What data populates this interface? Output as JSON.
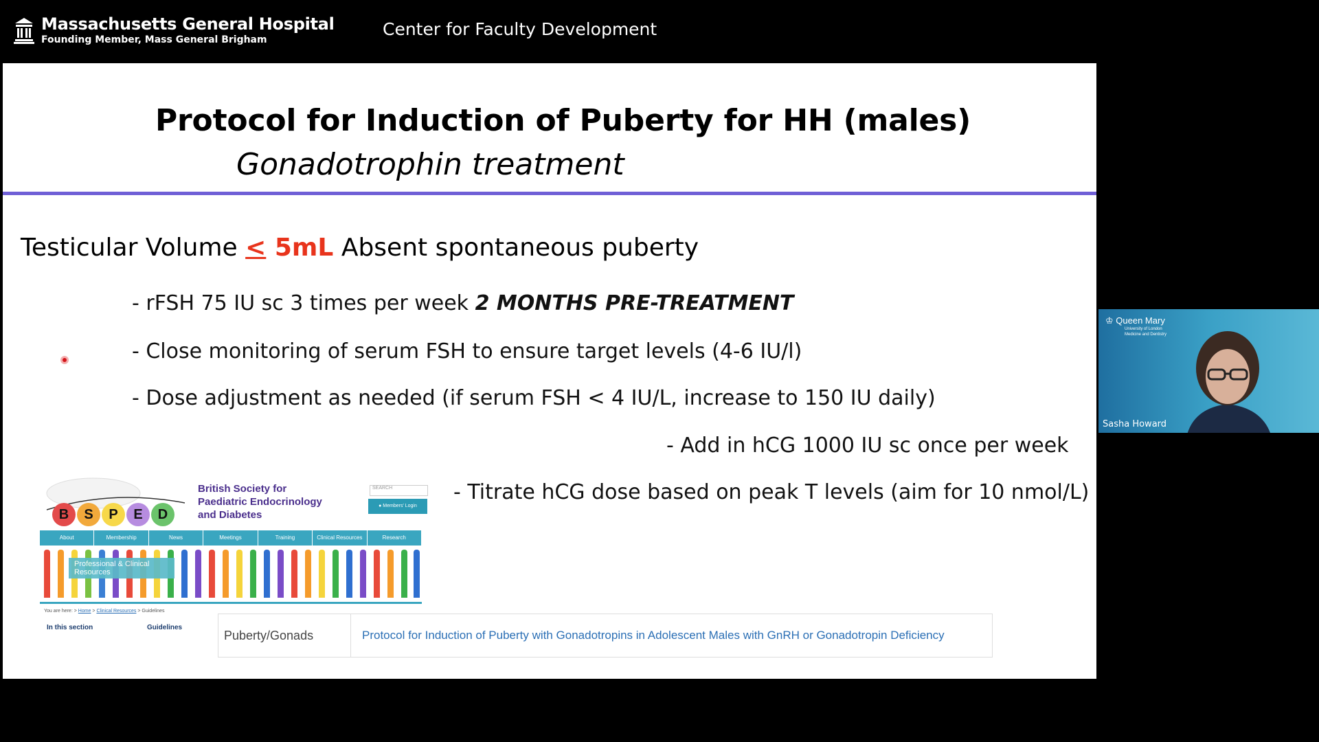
{
  "header": {
    "hospital_name": "Massachusetts General Hospital",
    "hospital_sub": "Founding Member, Mass General Brigham",
    "center_title": "Center for Faculty Development"
  },
  "slide": {
    "title": "Protocol for Induction of Puberty for HH (males)",
    "subtitle": "Gonadotrophin  treatment",
    "lead_prefix": "Testicular Volume ",
    "lead_le": "<",
    "lead_value": " 5mL",
    "lead_suffix": " Absent spontaneous puberty",
    "bullets": [
      {
        "text": "- rFSH 75 IU sc 3 times per week ",
        "emphasis": "2 MONTHS PRE-TREATMENT"
      },
      {
        "text": "- Close monitoring of serum FSH to ensure target levels (4-6 IU/l)"
      },
      {
        "text": "- Dose adjustment as needed (if serum FSH < 4 IU/L, increase to 150 IU daily)"
      },
      {
        "text": "- Add in hCG 1000 IU sc once per week"
      },
      {
        "text": "- Titrate hCG dose based on peak T levels (aim for 10 nmol/L)"
      }
    ],
    "accent_color": "#6f5fd6",
    "highlight_color": "#e8341c"
  },
  "bsped": {
    "letters": [
      "B",
      "S",
      "P",
      "E",
      "D"
    ],
    "society_name": "British Society for Paediatric Endocrinology and Diabetes",
    "search_placeholder": "SEARCH",
    "login_label": "Members' Login",
    "nav": [
      "About",
      "Membership",
      "News",
      "Meetings",
      "Training",
      "Clinical Resources",
      "Research"
    ],
    "banner": "Professional & Clinical Resources",
    "breadcrumb_prefix": "You are here: ",
    "breadcrumb_home": "Home",
    "breadcrumb_clinical": "Clinical Resources",
    "breadcrumb_last": "Guidelines",
    "in_section": "In this section",
    "guidelines": "Guidelines",
    "table_category": "Puberty/Gonads",
    "table_link": "Protocol for Induction of Puberty with Gonadotropins in Adolescent Males with GnRH or Gonadotropin Deficiency"
  },
  "webcam": {
    "institution": "Queen Mary",
    "institution_sub1": "University of London",
    "institution_sub2": "Medicine and Dentistry",
    "participant_name": "Sasha Howard"
  }
}
